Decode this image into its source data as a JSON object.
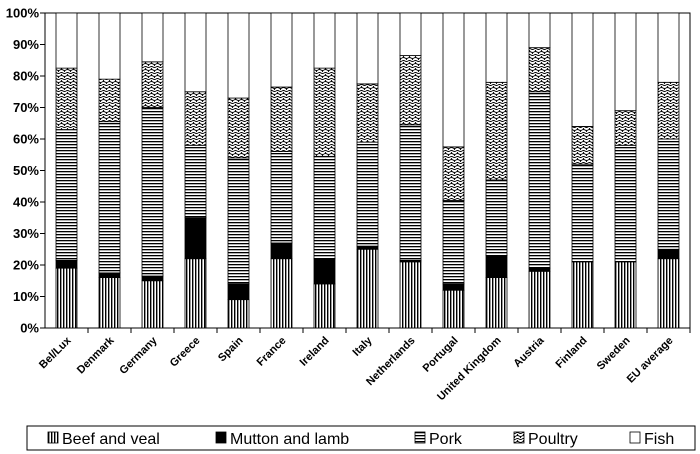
{
  "chart_data": {
    "type": "bar",
    "stacked": true,
    "title": "",
    "xlabel": "",
    "ylabel": "",
    "ylim": [
      0,
      100
    ],
    "ytick_labels": [
      "0%",
      "10%",
      "20%",
      "30%",
      "40%",
      "50%",
      "60%",
      "70%",
      "80%",
      "90%",
      "100%"
    ],
    "categories": [
      "Bel/Lux",
      "Denmark",
      "Germany",
      "Greece",
      "Spain",
      "France",
      "Ireland",
      "Italy",
      "Netherlands",
      "Portugal",
      "United Kingdom",
      "Austria",
      "Finland",
      "Sweden",
      "EU average"
    ],
    "series": [
      {
        "name": "Beef and veal",
        "pattern": "vertical",
        "values": [
          19,
          16,
          15,
          22,
          9,
          22,
          14,
          25,
          21,
          12,
          16,
          18,
          21,
          21,
          22
        ]
      },
      {
        "name": "Mutton and lamb",
        "pattern": "solid",
        "values": [
          2.5,
          1.5,
          1.5,
          13,
          5,
          5,
          8,
          1,
          0.5,
          2,
          7,
          1,
          0,
          0,
          3
        ]
      },
      {
        "name": "Pork",
        "pattern": "horizontal",
        "values": [
          41.5,
          48,
          53.5,
          23,
          40,
          29,
          32.5,
          33,
          43,
          26.5,
          24,
          56,
          31,
          37,
          35
        ]
      },
      {
        "name": "Poultry",
        "pattern": "dotted",
        "values": [
          19.5,
          13.5,
          14.5,
          17,
          19,
          20.5,
          28,
          18.5,
          22,
          17,
          31,
          14,
          12,
          11,
          18
        ]
      },
      {
        "name": "Fish",
        "pattern": "white",
        "values": [
          17.5,
          21,
          15.5,
          25,
          27,
          23.5,
          17.5,
          22.5,
          13.5,
          42.5,
          22,
          11,
          36,
          31,
          22
        ]
      }
    ],
    "legend_position": "bottom",
    "grid": false
  }
}
